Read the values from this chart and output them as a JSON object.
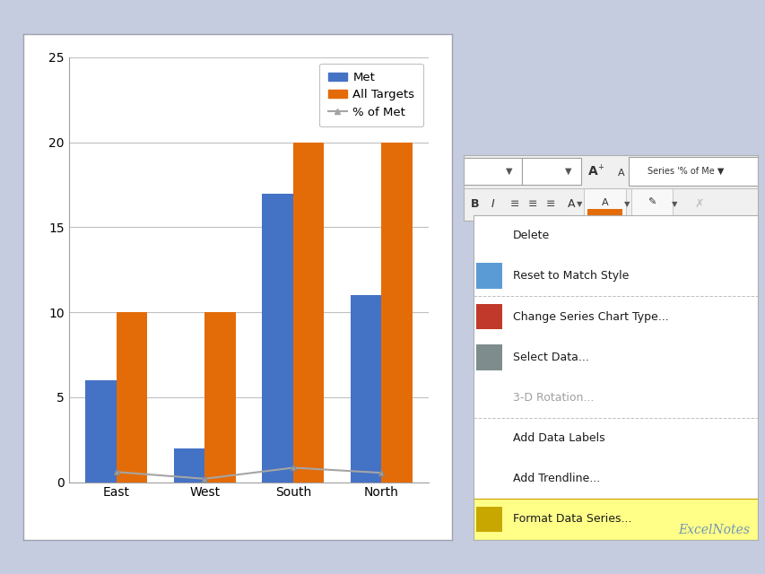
{
  "categories": [
    "East",
    "West",
    "South",
    "North"
  ],
  "met_values": [
    6,
    2,
    17,
    11
  ],
  "all_targets_values": [
    10,
    10,
    20,
    20
  ],
  "pct_of_met_values": [
    0.6,
    0.2,
    0.85,
    0.55
  ],
  "met_color": "#4472C4",
  "all_targets_color": "#E36C09",
  "line_color": "#A5A5A5",
  "chart_bg_color": "#FFFFFF",
  "page_bg_color": "#C5CCE0",
  "ylim": [
    0,
    25
  ],
  "yticks": [
    0,
    5,
    10,
    15,
    20,
    25
  ],
  "legend_labels": [
    "Met",
    "All Targets",
    "% of Met"
  ],
  "bar_width": 0.35,
  "grid_color": "#C0C0C0",
  "series_label": "Series '% of Me",
  "excelnotes_text": "ExcelNotes",
  "menu_items": [
    "Delete",
    "Reset to Match Style",
    "Change Series Chart Type...",
    "Select Data...",
    "3-D Rotation...",
    "Add Data Labels",
    "Add Trendline...",
    "Format Data Series..."
  ],
  "menu_separators": [
    2,
    5,
    7
  ],
  "menu_greyed": [
    4
  ],
  "menu_highlighted": [
    7
  ],
  "menu_icon_indices": [
    1,
    2,
    3,
    7
  ]
}
